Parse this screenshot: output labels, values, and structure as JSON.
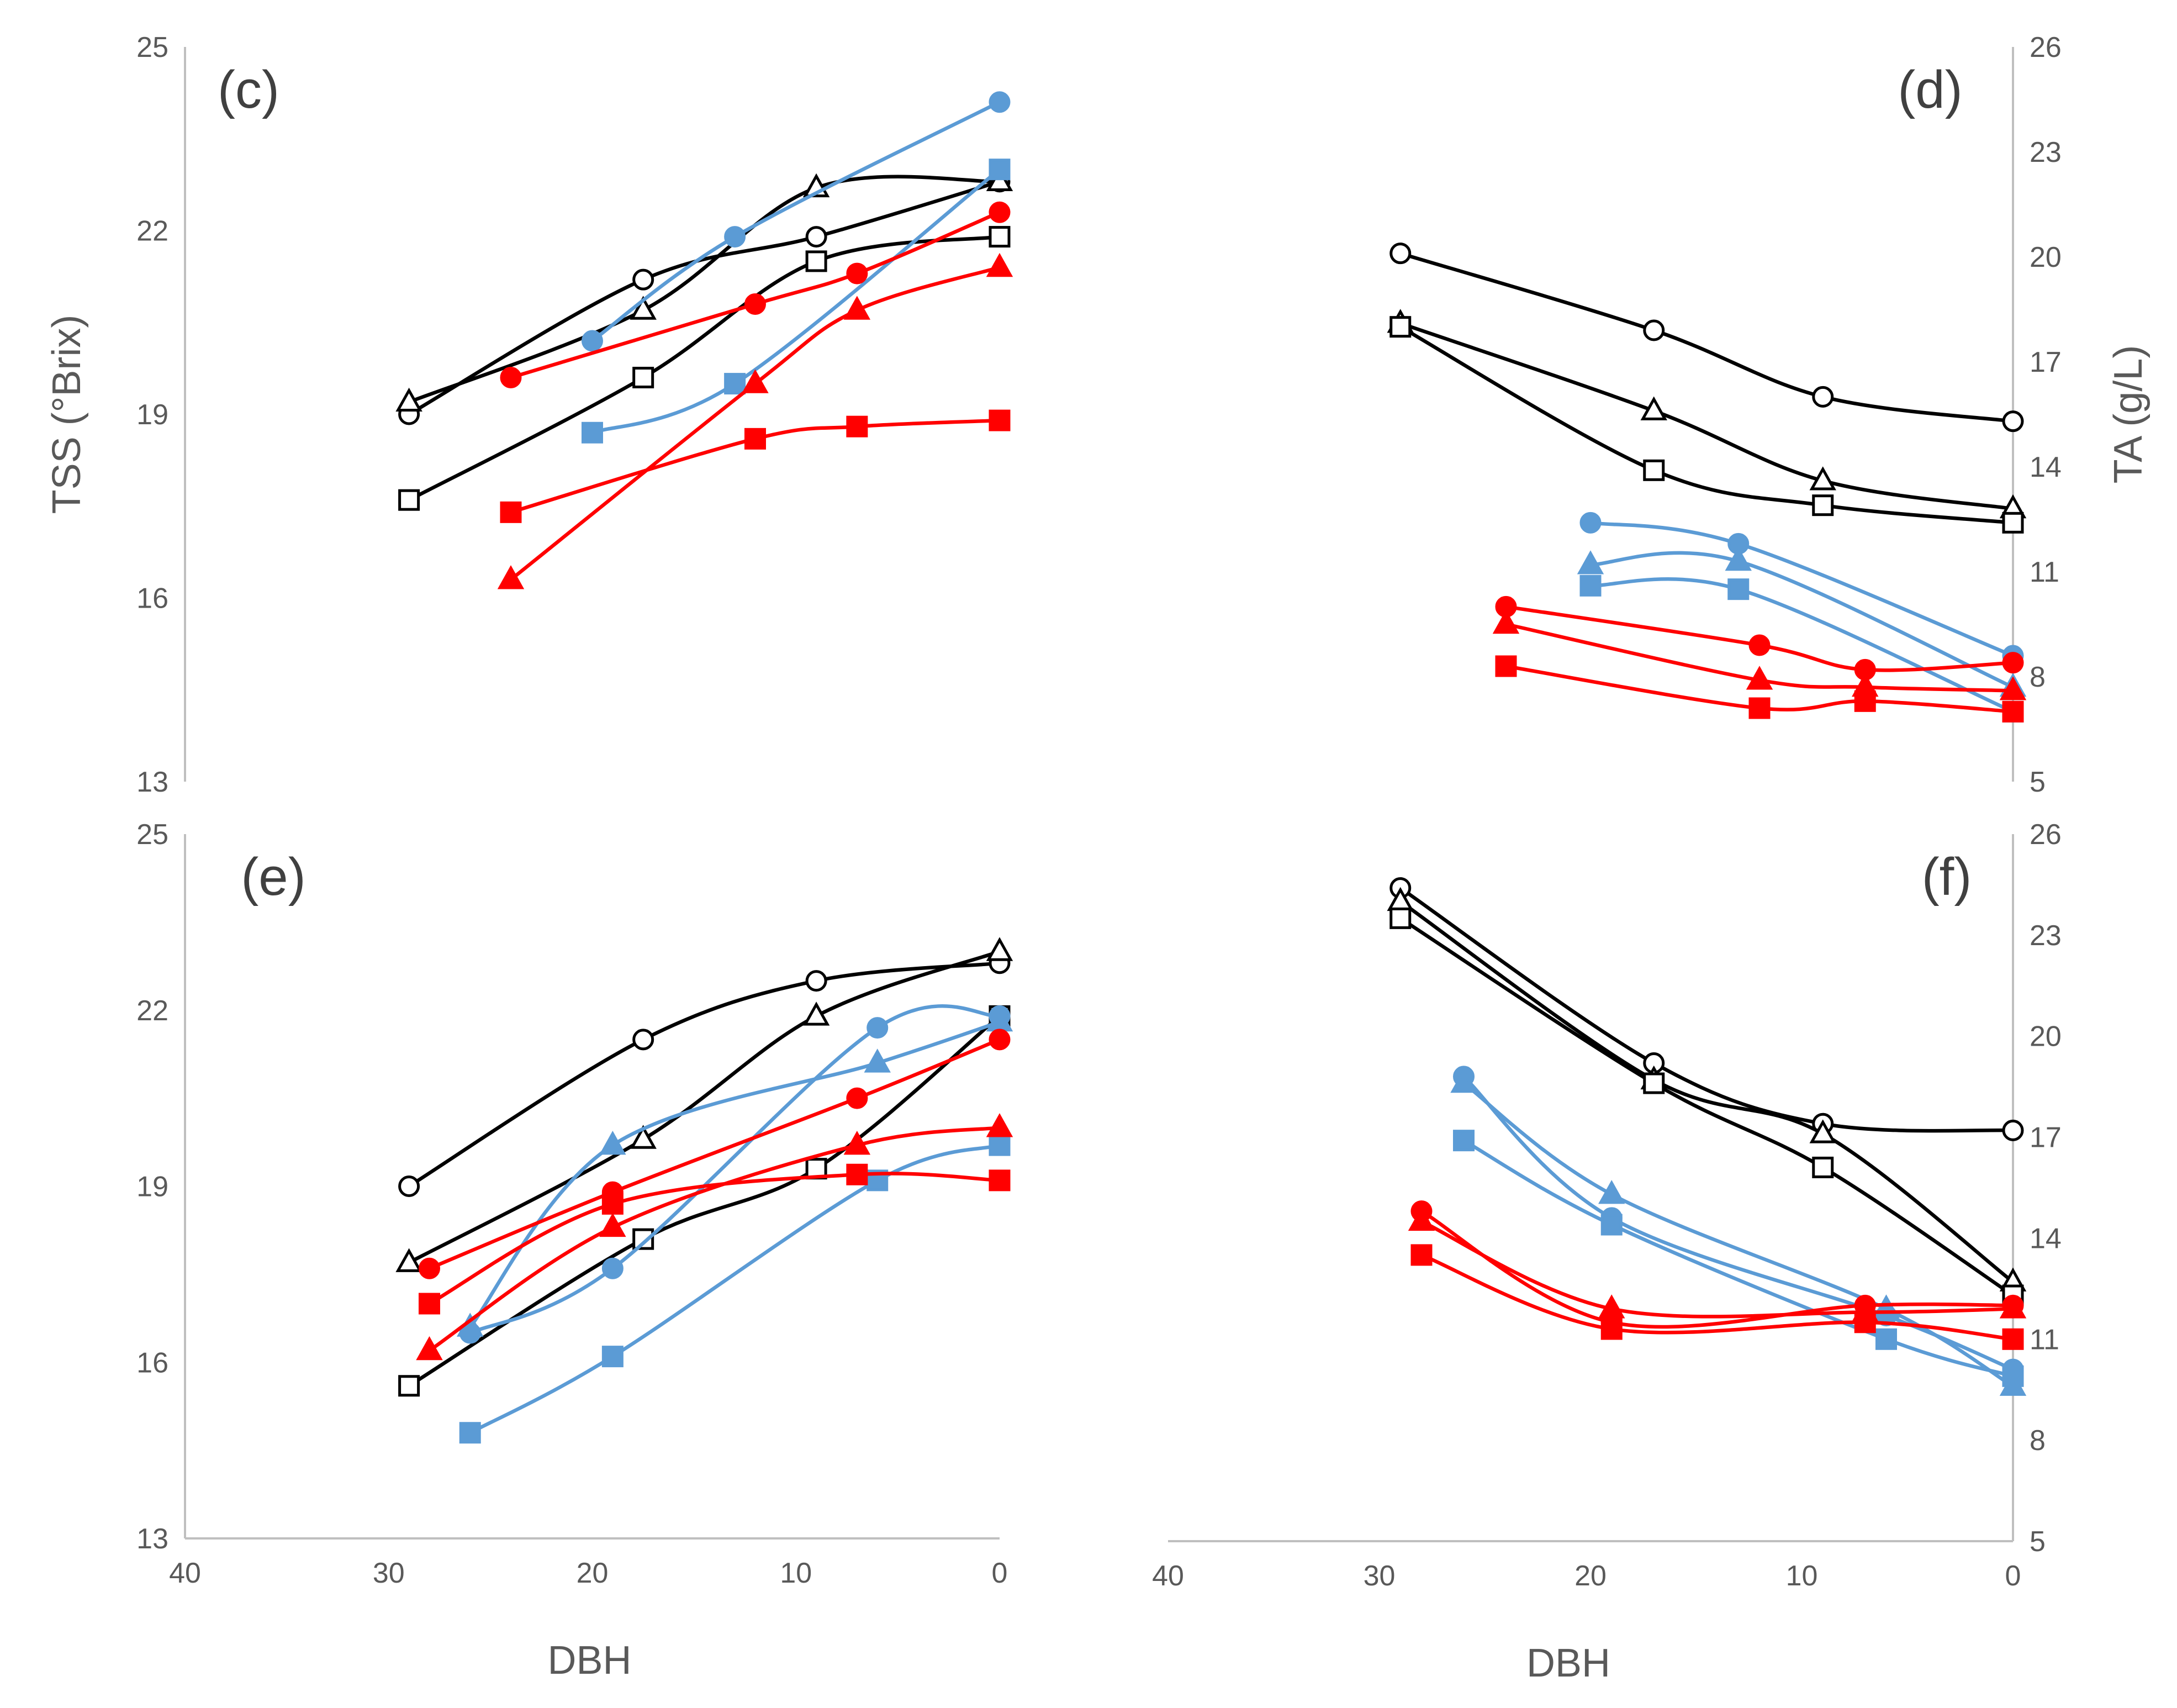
{
  "chart_data": [
    {
      "panel": "c",
      "type": "line",
      "xlabel": "",
      "ylabel": "TSS (°Brix)",
      "xlim": [
        40,
        0
      ],
      "ylim": [
        13,
        25
      ],
      "yticks": [
        "13",
        "16",
        "19",
        "22",
        "25"
      ],
      "series": [
        {
          "name": "black-circle",
          "color": "#000000",
          "marker": "circle",
          "filled": false,
          "x": [
            29,
            17.5,
            9,
            0
          ],
          "y": [
            19.0,
            21.2,
            21.9,
            22.8
          ]
        },
        {
          "name": "black-triangle",
          "color": "#000000",
          "marker": "triangle",
          "filled": false,
          "x": [
            29,
            17.5,
            9,
            0
          ],
          "y": [
            19.2,
            20.7,
            22.7,
            22.8
          ]
        },
        {
          "name": "black-square",
          "color": "#000000",
          "marker": "square",
          "filled": false,
          "x": [
            29,
            17.5,
            9,
            0
          ],
          "y": [
            17.6,
            19.6,
            21.5,
            21.9
          ]
        },
        {
          "name": "blue-circle",
          "color": "#5B9BD5",
          "marker": "circle",
          "filled": true,
          "x": [
            20,
            13,
            0
          ],
          "y": [
            20.2,
            21.9,
            24.1
          ]
        },
        {
          "name": "blue-square",
          "color": "#5B9BD5",
          "marker": "square",
          "filled": true,
          "x": [
            20,
            13,
            0
          ],
          "y": [
            18.7,
            19.5,
            23.0
          ]
        },
        {
          "name": "red-circle",
          "color": "#FF0000",
          "marker": "circle",
          "filled": true,
          "x": [
            24,
            12,
            7,
            0
          ],
          "y": [
            19.6,
            20.8,
            21.3,
            22.3
          ]
        },
        {
          "name": "red-triangle",
          "color": "#FF0000",
          "marker": "triangle",
          "filled": true,
          "x": [
            24,
            12,
            7,
            0
          ],
          "y": [
            16.3,
            19.5,
            20.7,
            21.4
          ]
        },
        {
          "name": "red-square",
          "color": "#FF0000",
          "marker": "square",
          "filled": true,
          "x": [
            24,
            12,
            7,
            0
          ],
          "y": [
            17.4,
            18.6,
            18.8,
            18.9
          ]
        }
      ]
    },
    {
      "panel": "d",
      "type": "line",
      "xlabel": "",
      "ylabel": "TA (g/L)",
      "xlim": [
        40,
        0
      ],
      "ylim": [
        5,
        26
      ],
      "yticks": [
        "5",
        "8",
        "11",
        "14",
        "17",
        "20",
        "23",
        "26"
      ],
      "series": [
        {
          "name": "black-circle",
          "color": "#000000",
          "marker": "circle",
          "filled": false,
          "x": [
            29,
            17,
            9,
            0
          ],
          "y": [
            20.1,
            17.9,
            16.0,
            15.3
          ]
        },
        {
          "name": "black-triangle",
          "color": "#000000",
          "marker": "triangle",
          "filled": false,
          "x": [
            29,
            17,
            9,
            0
          ],
          "y": [
            18.1,
            15.6,
            13.6,
            12.8
          ]
        },
        {
          "name": "black-square",
          "color": "#000000",
          "marker": "square",
          "filled": false,
          "x": [
            29,
            17,
            9,
            0
          ],
          "y": [
            18.0,
            13.9,
            12.9,
            12.4
          ]
        },
        {
          "name": "blue-circle",
          "color": "#5B9BD5",
          "marker": "circle",
          "filled": true,
          "x": [
            20,
            13,
            0
          ],
          "y": [
            12.4,
            11.8,
            8.6
          ]
        },
        {
          "name": "blue-triangle",
          "color": "#5B9BD5",
          "marker": "triangle",
          "filled": true,
          "x": [
            20,
            13,
            0
          ],
          "y": [
            11.2,
            11.3,
            7.7
          ]
        },
        {
          "name": "blue-square",
          "color": "#5B9BD5",
          "marker": "square",
          "filled": true,
          "x": [
            20,
            13,
            0
          ],
          "y": [
            10.6,
            10.5,
            7.0
          ]
        },
        {
          "name": "red-circle",
          "color": "#FF0000",
          "marker": "circle",
          "filled": true,
          "x": [
            24,
            12,
            7,
            0
          ],
          "y": [
            10.0,
            8.9,
            8.2,
            8.4
          ]
        },
        {
          "name": "red-triangle",
          "color": "#FF0000",
          "marker": "triangle",
          "filled": true,
          "x": [
            24,
            12,
            7,
            0
          ],
          "y": [
            9.5,
            7.9,
            7.7,
            7.6
          ]
        },
        {
          "name": "red-square",
          "color": "#FF0000",
          "marker": "square",
          "filled": true,
          "x": [
            24,
            12,
            7,
            0
          ],
          "y": [
            8.3,
            7.1,
            7.3,
            7.0
          ]
        }
      ]
    },
    {
      "panel": "e",
      "type": "line",
      "xlabel": "DBH",
      "ylabel": "",
      "xlim": [
        40,
        0
      ],
      "ylim": [
        13,
        25
      ],
      "xticks": [
        "40",
        "30",
        "20",
        "10",
        "0"
      ],
      "yticks": [
        "13",
        "16",
        "19",
        "22",
        "25"
      ],
      "series": [
        {
          "name": "black-circle",
          "color": "#000000",
          "marker": "circle",
          "filled": false,
          "x": [
            29,
            17.5,
            9,
            0
          ],
          "y": [
            19.0,
            21.5,
            22.5,
            22.8
          ]
        },
        {
          "name": "black-triangle",
          "color": "#000000",
          "marker": "triangle",
          "filled": false,
          "x": [
            29,
            17.5,
            9,
            0
          ],
          "y": [
            17.7,
            19.8,
            21.9,
            23.0
          ]
        },
        {
          "name": "black-square",
          "color": "#000000",
          "marker": "square",
          "filled": false,
          "x": [
            29,
            17.5,
            9,
            0
          ],
          "y": [
            15.6,
            18.1,
            19.3,
            21.9
          ]
        },
        {
          "name": "blue-circle",
          "color": "#5B9BD5",
          "marker": "circle",
          "filled": true,
          "x": [
            26,
            19,
            6,
            0
          ],
          "y": [
            16.5,
            17.6,
            21.7,
            21.9
          ]
        },
        {
          "name": "blue-triangle",
          "color": "#5B9BD5",
          "marker": "triangle",
          "filled": true,
          "x": [
            26,
            19,
            6,
            0
          ],
          "y": [
            16.6,
            19.7,
            21.1,
            21.8
          ]
        },
        {
          "name": "blue-square",
          "color": "#5B9BD5",
          "marker": "square",
          "filled": true,
          "x": [
            26,
            19,
            6,
            0
          ],
          "y": [
            14.8,
            16.1,
            19.1,
            19.7
          ]
        },
        {
          "name": "red-circle",
          "color": "#FF0000",
          "marker": "circle",
          "filled": true,
          "x": [
            28,
            19,
            7,
            0
          ],
          "y": [
            17.6,
            18.9,
            20.5,
            21.5
          ]
        },
        {
          "name": "red-triangle",
          "color": "#FF0000",
          "marker": "triangle",
          "filled": true,
          "x": [
            28,
            19,
            7,
            0
          ],
          "y": [
            16.2,
            18.3,
            19.7,
            20.0
          ]
        },
        {
          "name": "red-square",
          "color": "#FF0000",
          "marker": "square",
          "filled": true,
          "x": [
            28,
            19,
            7,
            0
          ],
          "y": [
            17.0,
            18.7,
            19.2,
            19.1
          ]
        }
      ]
    },
    {
      "panel": "f",
      "type": "line",
      "xlabel": "DBH",
      "ylabel": "",
      "xlim": [
        40,
        0
      ],
      "ylim": [
        5,
        26
      ],
      "xticks": [
        "40",
        "30",
        "20",
        "10",
        "0"
      ],
      "yticks": [
        "5",
        "8",
        "11",
        "14",
        "17",
        "20",
        "23",
        "26"
      ],
      "series": [
        {
          "name": "black-circle",
          "color": "#000000",
          "marker": "circle",
          "filled": false,
          "x": [
            29,
            17,
            9,
            0
          ],
          "y": [
            24.4,
            19.2,
            17.4,
            17.2
          ]
        },
        {
          "name": "black-triangle",
          "color": "#000000",
          "marker": "triangle",
          "filled": false,
          "x": [
            29,
            17,
            9,
            0
          ],
          "y": [
            24.0,
            18.7,
            17.1,
            12.7
          ]
        },
        {
          "name": "black-square",
          "color": "#000000",
          "marker": "square",
          "filled": false,
          "x": [
            29,
            17,
            9,
            0
          ],
          "y": [
            23.5,
            18.6,
            16.1,
            12.3
          ]
        },
        {
          "name": "blue-circle",
          "color": "#5B9BD5",
          "marker": "circle",
          "filled": true,
          "x": [
            26,
            19,
            6,
            0
          ],
          "y": [
            18.8,
            14.6,
            11.7,
            10.1
          ]
        },
        {
          "name": "blue-triangle",
          "color": "#5B9BD5",
          "marker": "triangle",
          "filled": true,
          "x": [
            26,
            19,
            6,
            0
          ],
          "y": [
            18.6,
            15.3,
            11.9,
            9.6
          ]
        },
        {
          "name": "blue-square",
          "color": "#5B9BD5",
          "marker": "square",
          "filled": true,
          "x": [
            26,
            19,
            6,
            0
          ],
          "y": [
            16.9,
            14.4,
            11.0,
            9.9
          ]
        },
        {
          "name": "red-circle",
          "color": "#FF0000",
          "marker": "circle",
          "filled": true,
          "x": [
            28,
            19,
            7,
            0
          ],
          "y": [
            14.8,
            11.5,
            12.0,
            12.0
          ]
        },
        {
          "name": "red-triangle",
          "color": "#FF0000",
          "marker": "triangle",
          "filled": true,
          "x": [
            28,
            19,
            7,
            0
          ],
          "y": [
            14.5,
            11.9,
            11.8,
            11.9
          ]
        },
        {
          "name": "red-square",
          "color": "#FF0000",
          "marker": "square",
          "filled": true,
          "x": [
            28,
            19,
            7,
            0
          ],
          "y": [
            13.5,
            11.3,
            11.5,
            11.0
          ]
        }
      ]
    }
  ]
}
